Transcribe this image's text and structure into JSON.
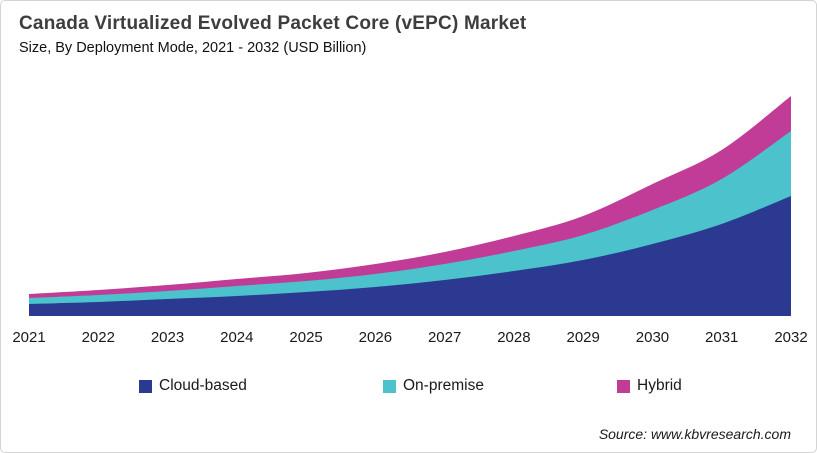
{
  "header": {
    "title": "Canada Virtualized Evolved Packet Core (vEPC) Market",
    "subtitle": "Size, By Deployment Mode, 2021 - 2032 (USD Billion)"
  },
  "source_text": "Source: www.kbvresearch.com",
  "legend": [
    {
      "label": "Cloud-based",
      "color": "#2B3990"
    },
    {
      "label": "On-premise",
      "color": "#4BC2CC"
    },
    {
      "label": "Hybrid",
      "color": "#C03C96"
    }
  ],
  "chart_data": {
    "type": "area",
    "stacked": true,
    "title": "Canada Virtualized Evolved Packet Core (vEPC) Market Size, By Deployment Mode, 2021 - 2032 (USD Billion)",
    "x": [
      2021,
      2022,
      2023,
      2024,
      2025,
      2026,
      2027,
      2028,
      2029,
      2030,
      2031,
      2032
    ],
    "series": [
      {
        "name": "Cloud-based",
        "color": "#2B3990",
        "values": [
          0.12,
          0.14,
          0.17,
          0.2,
          0.24,
          0.29,
          0.36,
          0.45,
          0.56,
          0.72,
          0.92,
          1.2
        ]
      },
      {
        "name": "On-premise",
        "color": "#4BC2CC",
        "values": [
          0.06,
          0.07,
          0.08,
          0.1,
          0.11,
          0.13,
          0.16,
          0.2,
          0.25,
          0.34,
          0.45,
          0.65
        ]
      },
      {
        "name": "Hybrid",
        "color": "#C03C96",
        "values": [
          0.04,
          0.05,
          0.06,
          0.07,
          0.08,
          0.1,
          0.12,
          0.15,
          0.19,
          0.26,
          0.29,
          0.35
        ]
      }
    ],
    "xlabel": "",
    "ylabel": "",
    "ylim": [
      0,
      2.3
    ],
    "y_axis_visible": false,
    "x_axis_line_visible": false,
    "gridlines": false,
    "legend_position": "bottom"
  }
}
